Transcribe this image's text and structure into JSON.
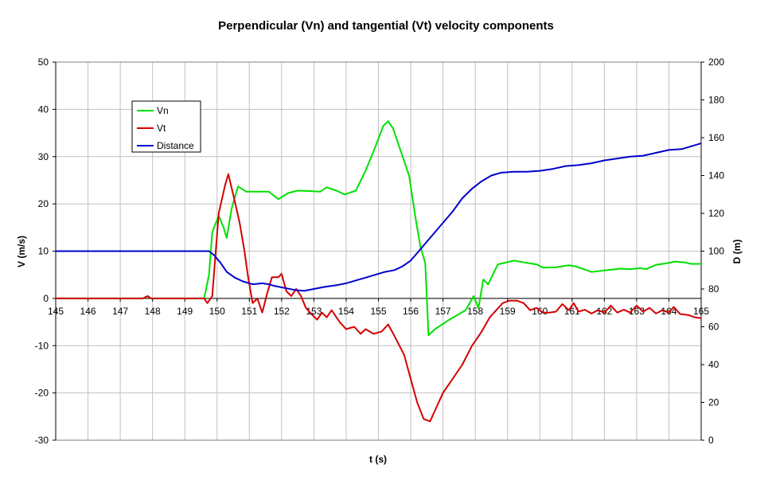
{
  "chart_data": {
    "type": "line",
    "title": "Perpendicular (Vn) and tangential (Vt) velocity components",
    "xlabel": "t (s)",
    "ylabel": "V (m/s)",
    "y2label": "D (m)",
    "xlim": [
      145,
      165
    ],
    "ylim": [
      -30,
      50
    ],
    "y2lim": [
      0,
      200
    ],
    "x_ticks": [
      "145",
      "146",
      "147",
      "148",
      "149",
      "150",
      "151",
      "152",
      "153",
      "154",
      "155",
      "156",
      "157",
      "158",
      "159",
      "160",
      "161",
      "162",
      "163",
      "164",
      "165"
    ],
    "y_ticks": [
      "50",
      "40",
      "30",
      "20",
      "10",
      "0",
      "-10",
      "-20",
      "-30"
    ],
    "y2_ticks": [
      "200",
      "180",
      "160",
      "140",
      "120",
      "100",
      "80",
      "60",
      "40",
      "20",
      "0"
    ],
    "grid": true,
    "legend_position": "top-left",
    "series": [
      {
        "name": "Vn",
        "color": "#00e000",
        "axis": "left",
        "points": [
          [
            145,
            0
          ],
          [
            147.7,
            0
          ],
          [
            147.85,
            0.5
          ],
          [
            147.95,
            0
          ],
          [
            149.6,
            0
          ],
          [
            149.75,
            5
          ],
          [
            149.85,
            14
          ],
          [
            150.05,
            17.5
          ],
          [
            150.2,
            15
          ],
          [
            150.3,
            12.8
          ],
          [
            150.45,
            19
          ],
          [
            150.65,
            23.7
          ],
          [
            150.9,
            22.6
          ],
          [
            151.3,
            22.6
          ],
          [
            151.6,
            22.6
          ],
          [
            151.9,
            21
          ],
          [
            152.2,
            22.3
          ],
          [
            152.5,
            22.8
          ],
          [
            152.9,
            22.7
          ],
          [
            153.2,
            22.6
          ],
          [
            153.4,
            23.5
          ],
          [
            153.7,
            22.8
          ],
          [
            153.95,
            22
          ],
          [
            154.3,
            22.8
          ],
          [
            154.6,
            27
          ],
          [
            154.9,
            32
          ],
          [
            155.15,
            36.5
          ],
          [
            155.3,
            37.5
          ],
          [
            155.45,
            36
          ],
          [
            155.7,
            31
          ],
          [
            155.95,
            26
          ],
          [
            156.15,
            17
          ],
          [
            156.3,
            11
          ],
          [
            156.45,
            7.5
          ],
          [
            156.55,
            -7.8
          ],
          [
            156.75,
            -6.5
          ],
          [
            157.2,
            -4.5
          ],
          [
            157.7,
            -2.5
          ],
          [
            157.95,
            0.5
          ],
          [
            158.1,
            -2
          ],
          [
            158.25,
            4
          ],
          [
            158.4,
            3
          ],
          [
            158.7,
            7.2
          ],
          [
            159.2,
            8
          ],
          [
            159.6,
            7.5
          ],
          [
            159.9,
            7.2
          ],
          [
            160.1,
            6.5
          ],
          [
            160.5,
            6.6
          ],
          [
            160.9,
            7
          ],
          [
            161.1,
            6.8
          ],
          [
            161.4,
            6.1
          ],
          [
            161.6,
            5.6
          ],
          [
            162.1,
            6
          ],
          [
            162.5,
            6.3
          ],
          [
            162.8,
            6.2
          ],
          [
            163.1,
            6.4
          ],
          [
            163.3,
            6.2
          ],
          [
            163.6,
            7.1
          ],
          [
            163.9,
            7.4
          ],
          [
            164.2,
            7.8
          ],
          [
            164.5,
            7.6
          ],
          [
            164.7,
            7.3
          ],
          [
            165,
            7.3
          ]
        ]
      },
      {
        "name": "Vt",
        "color": "#d40000",
        "axis": "left",
        "points": [
          [
            145,
            0
          ],
          [
            147.7,
            0
          ],
          [
            147.85,
            0.5
          ],
          [
            147.95,
            0
          ],
          [
            149.6,
            0
          ],
          [
            149.7,
            -1
          ],
          [
            149.85,
            0.5
          ],
          [
            150.05,
            18
          ],
          [
            150.25,
            24
          ],
          [
            150.35,
            26.3
          ],
          [
            150.5,
            22
          ],
          [
            150.7,
            16
          ],
          [
            150.85,
            10
          ],
          [
            150.95,
            5
          ],
          [
            151.1,
            -1
          ],
          [
            151.25,
            0
          ],
          [
            151.4,
            -3
          ],
          [
            151.55,
            1
          ],
          [
            151.7,
            4.5
          ],
          [
            151.9,
            4.5
          ],
          [
            152.0,
            5.2
          ],
          [
            152.15,
            1.5
          ],
          [
            152.3,
            0.5
          ],
          [
            152.45,
            2
          ],
          [
            152.6,
            0.5
          ],
          [
            152.75,
            -2
          ],
          [
            152.95,
            -3.5
          ],
          [
            153.1,
            -4.5
          ],
          [
            153.25,
            -3
          ],
          [
            153.4,
            -4
          ],
          [
            153.55,
            -2.5
          ],
          [
            153.8,
            -5
          ],
          [
            154.0,
            -6.5
          ],
          [
            154.25,
            -6
          ],
          [
            154.45,
            -7.5
          ],
          [
            154.6,
            -6.5
          ],
          [
            154.85,
            -7.5
          ],
          [
            155.1,
            -7
          ],
          [
            155.3,
            -5.5
          ],
          [
            155.5,
            -8
          ],
          [
            155.8,
            -12
          ],
          [
            156.0,
            -17
          ],
          [
            156.2,
            -22
          ],
          [
            156.4,
            -25.5
          ],
          [
            156.6,
            -26
          ],
          [
            156.8,
            -23
          ],
          [
            157.0,
            -20
          ],
          [
            157.3,
            -17
          ],
          [
            157.6,
            -14
          ],
          [
            157.9,
            -10
          ],
          [
            158.2,
            -7
          ],
          [
            158.45,
            -4
          ],
          [
            158.65,
            -2.5
          ],
          [
            158.85,
            -1
          ],
          [
            159.05,
            -0.5
          ],
          [
            159.3,
            -0.5
          ],
          [
            159.5,
            -1
          ],
          [
            159.7,
            -2.5
          ],
          [
            159.9,
            -2
          ],
          [
            160.1,
            -3
          ],
          [
            160.3,
            -3
          ],
          [
            160.5,
            -2.8
          ],
          [
            160.7,
            -1.2
          ],
          [
            160.9,
            -2.5
          ],
          [
            161.05,
            -1
          ],
          [
            161.2,
            -2.8
          ],
          [
            161.4,
            -2.4
          ],
          [
            161.6,
            -3.2
          ],
          [
            161.8,
            -2.5
          ],
          [
            162.0,
            -3
          ],
          [
            162.2,
            -1.5
          ],
          [
            162.4,
            -3
          ],
          [
            162.6,
            -2.4
          ],
          [
            162.8,
            -3
          ],
          [
            163.0,
            -1.5
          ],
          [
            163.2,
            -2.8
          ],
          [
            163.4,
            -2
          ],
          [
            163.6,
            -3.2
          ],
          [
            163.8,
            -2.5
          ],
          [
            164.0,
            -3
          ],
          [
            164.15,
            -1.8
          ],
          [
            164.35,
            -3.3
          ],
          [
            164.6,
            -3.5
          ],
          [
            164.8,
            -4
          ],
          [
            165,
            -4.2
          ]
        ]
      },
      {
        "name": "Distance",
        "color": "#0000cc",
        "axis": "right",
        "points": [
          [
            145,
            100
          ],
          [
            149.75,
            100
          ],
          [
            149.9,
            98
          ],
          [
            150.1,
            94
          ],
          [
            150.3,
            89
          ],
          [
            150.55,
            86
          ],
          [
            150.8,
            84
          ],
          [
            151.1,
            82.5
          ],
          [
            151.4,
            83
          ],
          [
            151.6,
            82.5
          ],
          [
            151.8,
            81.5
          ],
          [
            152.1,
            80.5
          ],
          [
            152.4,
            79.5
          ],
          [
            152.7,
            79
          ],
          [
            153.0,
            80
          ],
          [
            153.3,
            81
          ],
          [
            153.7,
            82
          ],
          [
            154.0,
            83
          ],
          [
            154.3,
            84.5
          ],
          [
            154.6,
            86
          ],
          [
            154.9,
            87.5
          ],
          [
            155.2,
            89
          ],
          [
            155.5,
            90
          ],
          [
            155.75,
            92
          ],
          [
            156.0,
            95
          ],
          [
            156.3,
            101
          ],
          [
            156.6,
            107
          ],
          [
            157.0,
            115
          ],
          [
            157.3,
            121
          ],
          [
            157.6,
            128
          ],
          [
            157.9,
            133
          ],
          [
            158.2,
            137
          ],
          [
            158.5,
            140
          ],
          [
            158.8,
            141.5
          ],
          [
            159.2,
            142
          ],
          [
            159.6,
            142
          ],
          [
            160.0,
            142.5
          ],
          [
            160.4,
            143.5
          ],
          [
            160.8,
            145
          ],
          [
            161.2,
            145.5
          ],
          [
            161.6,
            146.5
          ],
          [
            162.0,
            148
          ],
          [
            162.4,
            149
          ],
          [
            162.8,
            150
          ],
          [
            163.2,
            150.5
          ],
          [
            163.6,
            152
          ],
          [
            164.0,
            153.5
          ],
          [
            164.4,
            154
          ],
          [
            164.7,
            155.5
          ],
          [
            165,
            157
          ]
        ]
      }
    ]
  }
}
